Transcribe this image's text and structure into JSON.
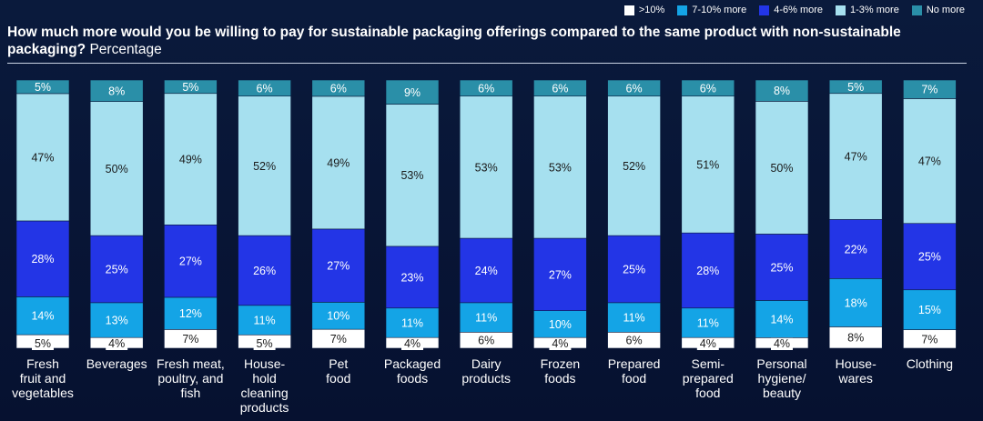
{
  "title": {
    "bold": "How much more would you be willing to pay for sustainable packaging offerings compared to the same product with non-sustainable packaging?",
    "normal": " Percentage"
  },
  "colors": {
    "gt10": "#ffffff",
    "p7_10": "#14a4e6",
    "p4_6": "#2335e6",
    "p1_3": "#a6e0ef",
    "none": "#2a8fa8"
  },
  "chart_data": {
    "type": "bar",
    "stacked": true,
    "normalized": true,
    "categories": [
      "Fresh fruit and vegetables",
      "Beverages",
      "Fresh meat, poultry, and fish",
      "House-hold cleaning products",
      "Pet food",
      "Packaged foods",
      "Dairy products",
      "Frozen foods",
      "Prepared food",
      "Semi-prepared food",
      "Personal hygiene/ beauty",
      "House-wares",
      "Clothing"
    ],
    "category_label_lines": [
      [
        "Fresh",
        "fruit and",
        "vegetables"
      ],
      [
        "Beverages"
      ],
      [
        "Fresh meat,",
        "poultry, and",
        "fish"
      ],
      [
        "House-",
        "hold",
        "cleaning",
        "products"
      ],
      [
        "Pet",
        "food"
      ],
      [
        "Packaged",
        "foods"
      ],
      [
        "Dairy",
        "products"
      ],
      [
        "Frozen",
        "foods"
      ],
      [
        "Prepared",
        "food"
      ],
      [
        "Semi-",
        "prepared",
        "food"
      ],
      [
        "Personal",
        "hygiene/",
        "beauty"
      ],
      [
        "House-",
        "wares"
      ],
      [
        "Clothing"
      ]
    ],
    "series": [
      {
        "name": ">10%",
        "key": "gt10",
        "values": [
          5,
          4,
          7,
          5,
          7,
          4,
          6,
          4,
          6,
          4,
          4,
          8,
          7
        ]
      },
      {
        "name": "7-10% more",
        "key": "p7_10",
        "values": [
          14,
          13,
          12,
          11,
          10,
          11,
          11,
          10,
          11,
          11,
          14,
          18,
          15
        ]
      },
      {
        "name": "4-6% more",
        "key": "p4_6",
        "values": [
          28,
          25,
          27,
          26,
          27,
          23,
          24,
          27,
          25,
          28,
          25,
          22,
          25
        ]
      },
      {
        "name": "1-3% more",
        "key": "p1_3",
        "values": [
          47,
          50,
          49,
          52,
          49,
          53,
          53,
          53,
          52,
          51,
          50,
          47,
          47
        ]
      },
      {
        "name": "No more",
        "key": "none",
        "values": [
          5,
          8,
          5,
          6,
          6,
          9,
          6,
          6,
          6,
          6,
          8,
          5,
          7
        ]
      }
    ],
    "legend": [
      "No more",
      "1-3% more",
      "4-6% more",
      "7-10% more",
      ">10%"
    ],
    "legend_position": "top-right",
    "ylim": [
      0,
      100
    ],
    "value_suffix": "%"
  }
}
